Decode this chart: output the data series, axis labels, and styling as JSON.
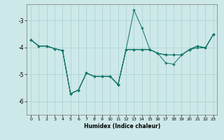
{
  "xlabel": "Humidex (Indice chaleur)",
  "background_color": "#cde8e8",
  "grid_color": "#aad0d0",
  "line_color": "#1a7a6e",
  "xlim": [
    -0.5,
    23.5
  ],
  "ylim": [
    -6.5,
    -2.4
  ],
  "xticks": [
    0,
    1,
    2,
    3,
    4,
    5,
    6,
    7,
    8,
    9,
    10,
    11,
    12,
    13,
    14,
    15,
    16,
    17,
    18,
    19,
    20,
    21,
    22,
    23
  ],
  "yticks": [
    -6,
    -5,
    -4,
    -3
  ],
  "shared_x": [
    0,
    1,
    2,
    3,
    4,
    5,
    6,
    7,
    8,
    9,
    10,
    11
  ],
  "shared_y": [
    -3.72,
    -3.95,
    -3.95,
    -4.05,
    -4.12,
    -5.72,
    -5.58,
    -4.95,
    -5.08,
    -5.08,
    -5.08,
    -5.38
  ],
  "line1_x": [
    11,
    12,
    13,
    14,
    15,
    16,
    17,
    18,
    19,
    20,
    21,
    22,
    23
  ],
  "line1_y": [
    -5.38,
    -4.08,
    -2.62,
    -3.28,
    -4.08,
    -4.22,
    -4.28,
    -4.28,
    -4.28,
    -4.08,
    -3.95,
    -4.02,
    -3.52
  ],
  "line2_x": [
    11,
    12,
    13,
    14,
    15,
    16,
    17,
    18,
    19,
    20,
    21,
    22,
    23
  ],
  "line2_y": [
    -5.38,
    -4.08,
    -4.08,
    -4.08,
    -4.08,
    -4.22,
    -4.28,
    -4.28,
    -4.28,
    -4.08,
    -3.95,
    -4.02,
    -3.52
  ],
  "line3_x": [
    11,
    12,
    13,
    14,
    15,
    16,
    17,
    18,
    19,
    20,
    21,
    22,
    23
  ],
  "line3_y": [
    -5.38,
    -4.08,
    -4.08,
    -4.08,
    -4.08,
    -4.22,
    -4.58,
    -4.62,
    -4.28,
    -4.08,
    -4.02,
    -4.02,
    -3.52
  ],
  "line4_x": [
    11,
    12,
    13,
    14,
    15,
    16,
    17,
    18,
    19,
    20,
    21,
    22,
    23
  ],
  "line4_y": [
    -5.38,
    -4.08,
    -4.08,
    -4.08,
    -4.08,
    -4.22,
    -4.28,
    -4.28,
    -4.28,
    -4.08,
    -3.95,
    -4.02,
    -3.52
  ]
}
